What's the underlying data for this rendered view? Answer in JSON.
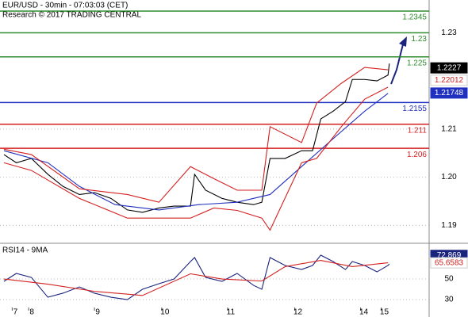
{
  "chart_data": [
    {
      "type": "line",
      "title": "EUR/USD - 30min - 07:03:03 (CET)",
      "subtitle": "Research © 2017 TRADING CENTRAL",
      "xlim": [
        0,
        310
      ],
      "ylim": [
        1.1866,
        1.2368
      ],
      "yticks": [
        1.19,
        {
          "value": 1.2,
          "label": "1.20"
        },
        1.21,
        1.23
      ],
      "levels": [
        {
          "value": 1.2345,
          "color": "#2e8b2e"
        },
        {
          "value": 1.23,
          "color": "#2e8b2e"
        },
        {
          "value": 1.225,
          "color": "#2e8b2e"
        },
        {
          "value": 1.2155,
          "color": "#1f2fbf"
        },
        {
          "value": 1.211,
          "color": "#d42020"
        },
        {
          "value": 1.206,
          "color": "#d42020"
        }
      ],
      "tags": [
        {
          "value": 1.2227,
          "color": "#000000",
          "text_color": "#ffffff"
        },
        {
          "value": 1.22012,
          "color": "#ffffff",
          "text_color": "#d42020"
        },
        {
          "value": 1.21748,
          "color": "#1f2fbf",
          "text_color": "#ffffff"
        }
      ],
      "series": [
        {
          "color": "#000000",
          "x": [
            0,
            9,
            20,
            32,
            43,
            55,
            66,
            78,
            90,
            101,
            113,
            124,
            136,
            139,
            147,
            159,
            170,
            182,
            188,
            194,
            205,
            217,
            225,
            231,
            240,
            249,
            254,
            263,
            272,
            280,
            281
          ],
          "values": [
            1.2047,
            1.203,
            1.2039,
            1.2006,
            1.1981,
            1.1964,
            1.1968,
            1.1956,
            1.1932,
            1.1927,
            1.1936,
            1.194,
            1.194,
            1.2006,
            1.1973,
            1.1956,
            1.1948,
            1.1943,
            1.1948,
            1.2039,
            1.2039,
            1.2055,
            1.2055,
            1.2121,
            1.2137,
            1.2157,
            1.2203,
            1.2203,
            1.22,
            1.2212,
            1.2236
          ]
        },
        {
          "color": "#1f2fbf",
          "x": [
            0,
            32,
            55,
            81,
            113,
            142,
            170,
            194,
            217,
            240,
            263,
            280
          ],
          "values": [
            1.2055,
            1.203,
            1.1981,
            1.1943,
            1.1932,
            1.1943,
            1.1948,
            1.1964,
            1.2022,
            1.208,
            1.2137,
            1.2174
          ]
        },
        {
          "color": "#d42020",
          "x": [
            0,
            20,
            55,
            90,
            113,
            136,
            153,
            170,
            188,
            194,
            217,
            228,
            246,
            263,
            280
          ],
          "values": [
            1.2058,
            1.2047,
            1.1976,
            1.1964,
            1.1948,
            1.2022,
            1.1997,
            1.1973,
            1.1973,
            1.2105,
            1.2072,
            1.2154,
            1.2195,
            1.2228,
            1.2223
          ]
        },
        {
          "color": "#d42020",
          "x": [
            0,
            20,
            55,
            90,
            113,
            136,
            153,
            170,
            188,
            194,
            217,
            228,
            246,
            263,
            280
          ],
          "values": [
            1.203,
            1.2014,
            1.1956,
            1.1915,
            1.1915,
            1.1915,
            1.1936,
            1.1931,
            1.1915,
            1.189,
            1.203,
            1.2039,
            1.2105,
            1.2162,
            1.2187
          ]
        }
      ]
    },
    {
      "type": "line",
      "title": "RSI14 - 9MA",
      "xlim": [
        0,
        310
      ],
      "ylim": [
        20.8,
        82.3
      ],
      "yticks": [
        30,
        50
      ],
      "xticks": [
        {
          "value": 6,
          "label": "7"
        },
        {
          "value": 18,
          "label": "8"
        },
        {
          "value": 66,
          "label": "9"
        },
        {
          "value": 115,
          "label": "10"
        },
        {
          "value": 163,
          "label": "11"
        },
        {
          "value": 212,
          "label": "12"
        },
        {
          "value": 260,
          "label": "14"
        },
        {
          "value": 275,
          "label": "15"
        }
      ],
      "tags": [
        {
          "value": 72.869,
          "color": "#1a237e",
          "text_color": "#ffffff"
        },
        {
          "value": 65.6583,
          "color": "#ffffff",
          "text_color": "#d42020"
        }
      ],
      "series": [
        {
          "color": "#1a237e",
          "x": [
            0,
            9,
            20,
            32,
            43,
            55,
            66,
            78,
            90,
            101,
            113,
            124,
            136,
            139,
            147,
            159,
            170,
            182,
            188,
            194,
            205,
            217,
            225,
            231,
            240,
            249,
            254,
            263,
            272,
            280,
            281
          ],
          "values": [
            47.7,
            55.4,
            51.5,
            32.3,
            36.2,
            42.3,
            36.2,
            32.3,
            30.0,
            40.0,
            45.4,
            50.0,
            66.9,
            70.8,
            51.5,
            47.7,
            55.4,
            43.8,
            40.0,
            70.8,
            63.1,
            59.2,
            63.1,
            73.1,
            66.9,
            59.2,
            66.9,
            63.1,
            56.9,
            63.1,
            64.6
          ]
        },
        {
          "color": "#d42020",
          "x": [
            0,
            32,
            66,
            101,
            136,
            159,
            188,
            205,
            231,
            254,
            280
          ],
          "values": [
            50,
            45,
            38,
            34,
            55,
            50,
            48,
            62,
            68,
            62,
            65.7
          ]
        }
      ]
    }
  ]
}
